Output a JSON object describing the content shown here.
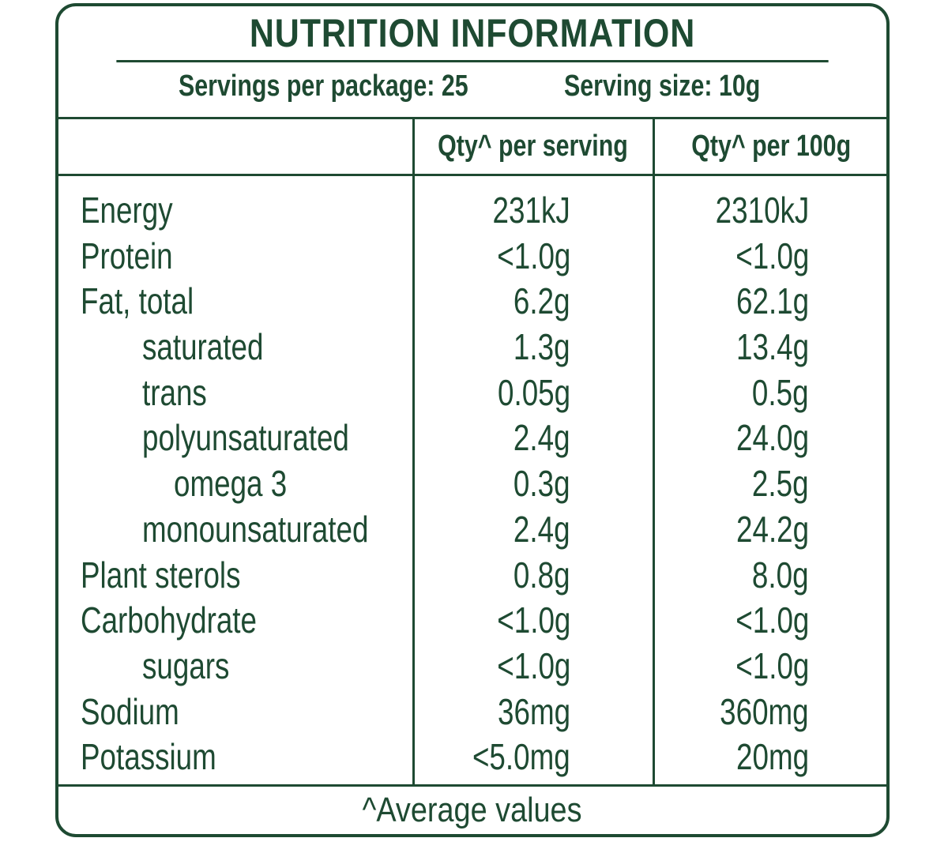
{
  "label": {
    "title": "NUTRITION INFORMATION",
    "servings_per_package": "Servings per package: 25",
    "serving_size": "Serving size: 10g",
    "col_per_serving": "Qty^  per serving",
    "col_per_100g": "Qty^  per 100g",
    "footnote": "^Average values",
    "accent_color": "#1e4a32"
  },
  "rows": [
    {
      "name": "Energy",
      "per_serving": "231kJ",
      "per_100g": "2310kJ",
      "indent": 0
    },
    {
      "name": "Protein",
      "per_serving": "<1.0g",
      "per_100g": "<1.0g",
      "indent": 0
    },
    {
      "name": "Fat, total",
      "per_serving": "6.2g",
      "per_100g": "62.1g",
      "indent": 0
    },
    {
      "name": "saturated",
      "per_serving": "1.3g",
      "per_100g": "13.4g",
      "indent": 1
    },
    {
      "name": "trans",
      "per_serving": "0.05g",
      "per_100g": "0.5g",
      "indent": 1
    },
    {
      "name": "polyunsaturated",
      "per_serving": "2.4g",
      "per_100g": "24.0g",
      "indent": 1
    },
    {
      "name": "omega 3",
      "per_serving": "0.3g",
      "per_100g": "2.5g",
      "indent": 2
    },
    {
      "name": "monounsaturated",
      "per_serving": "2.4g",
      "per_100g": "24.2g",
      "indent": 1
    },
    {
      "name": "Plant sterols",
      "per_serving": "0.8g",
      "per_100g": "8.0g",
      "indent": 0
    },
    {
      "name": "Carbohydrate",
      "per_serving": "<1.0g",
      "per_100g": "<1.0g",
      "indent": 0
    },
    {
      "name": "sugars",
      "per_serving": "<1.0g",
      "per_100g": "<1.0g",
      "indent": 1
    },
    {
      "name": "Sodium",
      "per_serving": "36mg",
      "per_100g": "360mg",
      "indent": 0
    },
    {
      "name": "Potassium",
      "per_serving": "<5.0mg",
      "per_100g": "20mg",
      "indent": 0
    }
  ]
}
